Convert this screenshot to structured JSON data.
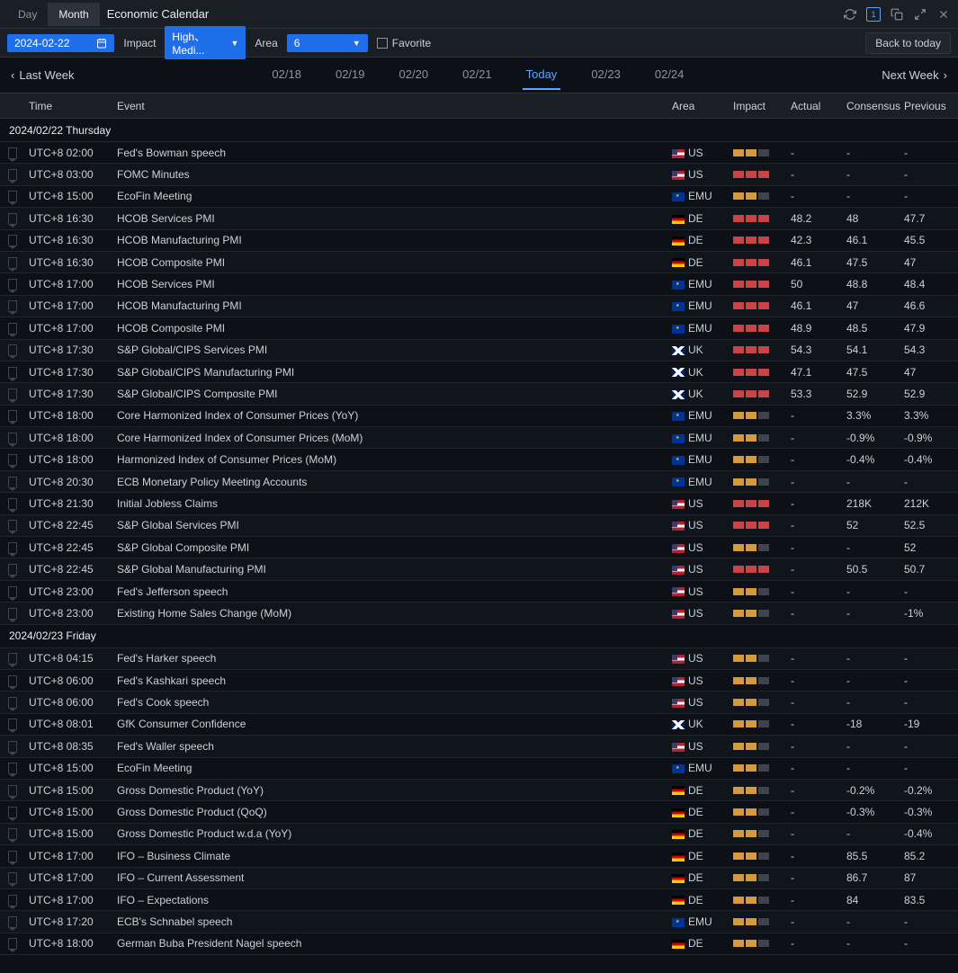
{
  "titlebar": {
    "tab_day": "Day",
    "tab_month": "Month",
    "title": "Economic Calendar",
    "box_number": "1"
  },
  "toolbar": {
    "date": "2024-02-22",
    "impact_label": "Impact",
    "impact_value": "High、Medi...",
    "area_label": "Area",
    "area_value": "6",
    "favorite_label": "Favorite",
    "back_today": "Back to today"
  },
  "weekbar": {
    "last_week": "Last Week",
    "next_week": "Next Week",
    "dates": [
      "02/18",
      "02/19",
      "02/20",
      "02/21",
      "Today",
      "02/23",
      "02/24"
    ],
    "today_index": 4
  },
  "headers": {
    "time": "Time",
    "event": "Event",
    "area": "Area",
    "impact": "Impact",
    "actual": "Actual",
    "consensus": "Consensus",
    "previous": "Previous"
  },
  "sections": [
    {
      "label": "2024/02/22 Thursday",
      "rows": [
        {
          "time": "UTC+8 02:00",
          "event": "Fed's Bowman speech",
          "area": "US",
          "flag": "us",
          "impact": 2,
          "color": "orange",
          "actual": "-",
          "consensus": "-",
          "previous": "-"
        },
        {
          "time": "UTC+8 03:00",
          "event": "FOMC Minutes",
          "area": "US",
          "flag": "us",
          "impact": 3,
          "color": "red",
          "actual": "-",
          "consensus": "-",
          "previous": "-"
        },
        {
          "time": "UTC+8 15:00",
          "event": "EcoFin Meeting",
          "area": "EMU",
          "flag": "emu",
          "impact": 2,
          "color": "orange",
          "actual": "-",
          "consensus": "-",
          "previous": "-"
        },
        {
          "time": "UTC+8 16:30",
          "event": "HCOB Services PMI",
          "area": "DE",
          "flag": "de",
          "impact": 3,
          "color": "red",
          "actual": "48.2",
          "consensus": "48",
          "previous": "47.7"
        },
        {
          "time": "UTC+8 16:30",
          "event": "HCOB Manufacturing PMI",
          "area": "DE",
          "flag": "de",
          "impact": 3,
          "color": "red",
          "actual": "42.3",
          "consensus": "46.1",
          "previous": "45.5"
        },
        {
          "time": "UTC+8 16:30",
          "event": "HCOB Composite PMI",
          "area": "DE",
          "flag": "de",
          "impact": 3,
          "color": "red",
          "actual": "46.1",
          "consensus": "47.5",
          "previous": "47"
        },
        {
          "time": "UTC+8 17:00",
          "event": "HCOB Services PMI",
          "area": "EMU",
          "flag": "emu",
          "impact": 3,
          "color": "red",
          "actual": "50",
          "consensus": "48.8",
          "previous": "48.4"
        },
        {
          "time": "UTC+8 17:00",
          "event": "HCOB Manufacturing PMI",
          "area": "EMU",
          "flag": "emu",
          "impact": 3,
          "color": "red",
          "actual": "46.1",
          "consensus": "47",
          "previous": "46.6"
        },
        {
          "time": "UTC+8 17:00",
          "event": "HCOB Composite PMI",
          "area": "EMU",
          "flag": "emu",
          "impact": 3,
          "color": "red",
          "actual": "48.9",
          "consensus": "48.5",
          "previous": "47.9"
        },
        {
          "time": "UTC+8 17:30",
          "event": "S&P Global/CIPS Services PMI",
          "area": "UK",
          "flag": "uk",
          "impact": 3,
          "color": "red",
          "actual": "54.3",
          "consensus": "54.1",
          "previous": "54.3"
        },
        {
          "time": "UTC+8 17:30",
          "event": "S&P Global/CIPS Manufacturing PMI",
          "area": "UK",
          "flag": "uk",
          "impact": 3,
          "color": "red",
          "actual": "47.1",
          "consensus": "47.5",
          "previous": "47"
        },
        {
          "time": "UTC+8 17:30",
          "event": "S&P Global/CIPS Composite PMI",
          "area": "UK",
          "flag": "uk",
          "impact": 3,
          "color": "red",
          "actual": "53.3",
          "consensus": "52.9",
          "previous": "52.9"
        },
        {
          "time": "UTC+8 18:00",
          "event": "Core Harmonized Index of Consumer Prices (YoY)",
          "area": "EMU",
          "flag": "emu",
          "impact": 2,
          "color": "orange",
          "actual": "-",
          "consensus": "3.3%",
          "previous": "3.3%"
        },
        {
          "time": "UTC+8 18:00",
          "event": "Core Harmonized Index of Consumer Prices (MoM)",
          "area": "EMU",
          "flag": "emu",
          "impact": 2,
          "color": "orange",
          "actual": "-",
          "consensus": "-0.9%",
          "previous": "-0.9%"
        },
        {
          "time": "UTC+8 18:00",
          "event": "Harmonized Index of Consumer Prices (MoM)",
          "area": "EMU",
          "flag": "emu",
          "impact": 2,
          "color": "orange",
          "actual": "-",
          "consensus": "-0.4%",
          "previous": "-0.4%"
        },
        {
          "time": "UTC+8 20:30",
          "event": "ECB Monetary Policy Meeting Accounts",
          "area": "EMU",
          "flag": "emu",
          "impact": 2,
          "color": "orange",
          "actual": "-",
          "consensus": "-",
          "previous": "-"
        },
        {
          "time": "UTC+8 21:30",
          "event": "Initial Jobless Claims",
          "area": "US",
          "flag": "us",
          "impact": 3,
          "color": "red",
          "actual": "-",
          "consensus": "218K",
          "previous": "212K"
        },
        {
          "time": "UTC+8 22:45",
          "event": "S&P Global Services PMI",
          "area": "US",
          "flag": "us",
          "impact": 3,
          "color": "red",
          "actual": "-",
          "consensus": "52",
          "previous": "52.5"
        },
        {
          "time": "UTC+8 22:45",
          "event": "S&P Global Composite PMI",
          "area": "US",
          "flag": "us",
          "impact": 2,
          "color": "orange",
          "actual": "-",
          "consensus": "-",
          "previous": "52"
        },
        {
          "time": "UTC+8 22:45",
          "event": "S&P Global Manufacturing PMI",
          "area": "US",
          "flag": "us",
          "impact": 3,
          "color": "red",
          "actual": "-",
          "consensus": "50.5",
          "previous": "50.7"
        },
        {
          "time": "UTC+8 23:00",
          "event": "Fed's Jefferson speech",
          "area": "US",
          "flag": "us",
          "impact": 2,
          "color": "orange",
          "actual": "-",
          "consensus": "-",
          "previous": "-"
        },
        {
          "time": "UTC+8 23:00",
          "event": "Existing Home Sales Change (MoM)",
          "area": "US",
          "flag": "us",
          "impact": 2,
          "color": "orange",
          "actual": "-",
          "consensus": "-",
          "previous": "-1%"
        }
      ]
    },
    {
      "label": "2024/02/23 Friday",
      "rows": [
        {
          "time": "UTC+8 04:15",
          "event": "Fed's Harker speech",
          "area": "US",
          "flag": "us",
          "impact": 2,
          "color": "orange",
          "actual": "-",
          "consensus": "-",
          "previous": "-"
        },
        {
          "time": "UTC+8 06:00",
          "event": "Fed's Kashkari speech",
          "area": "US",
          "flag": "us",
          "impact": 2,
          "color": "orange",
          "actual": "-",
          "consensus": "-",
          "previous": "-"
        },
        {
          "time": "UTC+8 06:00",
          "event": "Fed's Cook speech",
          "area": "US",
          "flag": "us",
          "impact": 2,
          "color": "orange",
          "actual": "-",
          "consensus": "-",
          "previous": "-"
        },
        {
          "time": "UTC+8 08:01",
          "event": "GfK Consumer Confidence",
          "area": "UK",
          "flag": "uk",
          "impact": 2,
          "color": "orange",
          "actual": "-",
          "consensus": "-18",
          "previous": "-19"
        },
        {
          "time": "UTC+8 08:35",
          "event": "Fed's Waller speech",
          "area": "US",
          "flag": "us",
          "impact": 2,
          "color": "orange",
          "actual": "-",
          "consensus": "-",
          "previous": "-"
        },
        {
          "time": "UTC+8 15:00",
          "event": "EcoFin Meeting",
          "area": "EMU",
          "flag": "emu",
          "impact": 2,
          "color": "orange",
          "actual": "-",
          "consensus": "-",
          "previous": "-"
        },
        {
          "time": "UTC+8 15:00",
          "event": "Gross Domestic Product (YoY)",
          "area": "DE",
          "flag": "de",
          "impact": 2,
          "color": "orange",
          "actual": "-",
          "consensus": "-0.2%",
          "previous": "-0.2%"
        },
        {
          "time": "UTC+8 15:00",
          "event": "Gross Domestic Product (QoQ)",
          "area": "DE",
          "flag": "de",
          "impact": 2,
          "color": "orange",
          "actual": "-",
          "consensus": "-0.3%",
          "previous": "-0.3%"
        },
        {
          "time": "UTC+8 15:00",
          "event": "Gross Domestic Product w.d.a (YoY)",
          "area": "DE",
          "flag": "de",
          "impact": 2,
          "color": "orange",
          "actual": "-",
          "consensus": "-",
          "previous": "-0.4%"
        },
        {
          "time": "UTC+8 17:00",
          "event": "IFO – Business Climate",
          "area": "DE",
          "flag": "de",
          "impact": 2,
          "color": "orange",
          "actual": "-",
          "consensus": "85.5",
          "previous": "85.2"
        },
        {
          "time": "UTC+8 17:00",
          "event": "IFO – Current Assessment",
          "area": "DE",
          "flag": "de",
          "impact": 2,
          "color": "orange",
          "actual": "-",
          "consensus": "86.7",
          "previous": "87"
        },
        {
          "time": "UTC+8 17:00",
          "event": "IFO – Expectations",
          "area": "DE",
          "flag": "de",
          "impact": 2,
          "color": "orange",
          "actual": "-",
          "consensus": "84",
          "previous": "83.5"
        },
        {
          "time": "UTC+8 17:20",
          "event": "ECB's Schnabel speech",
          "area": "EMU",
          "flag": "emu",
          "impact": 2,
          "color": "orange",
          "actual": "-",
          "consensus": "-",
          "previous": "-"
        },
        {
          "time": "UTC+8 18:00",
          "event": "German Buba President Nagel speech",
          "area": "DE",
          "flag": "de",
          "impact": 2,
          "color": "orange",
          "actual": "-",
          "consensus": "-",
          "previous": "-"
        }
      ]
    }
  ]
}
